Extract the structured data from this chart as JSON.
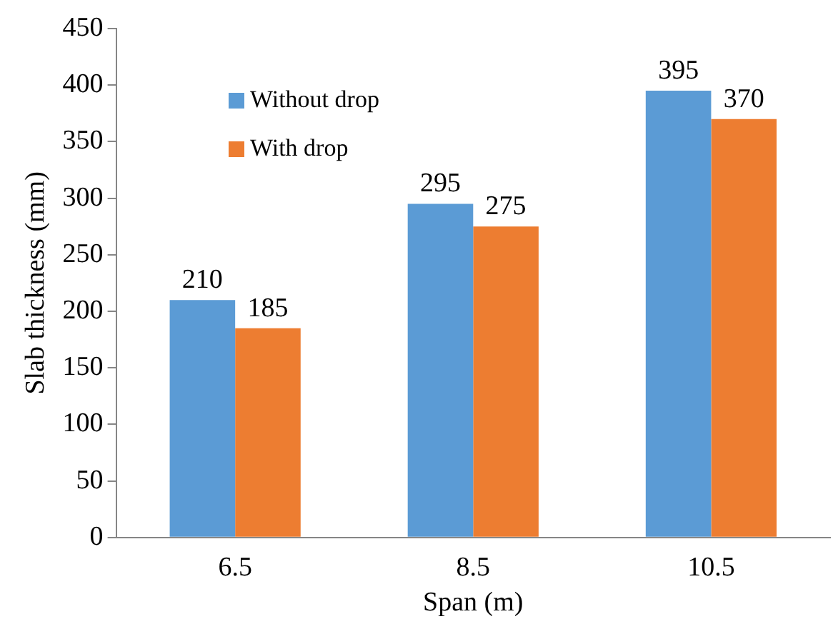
{
  "chart_data": {
    "type": "bar",
    "xlabel": "Span (m)",
    "ylabel": "Slab thickness (mm)",
    "categories": [
      "6.5",
      "8.5",
      "10.5"
    ],
    "series": [
      {
        "name": "Without drop",
        "color": "#5b9bd5",
        "values": [
          210,
          295,
          395
        ]
      },
      {
        "name": "With drop",
        "color": "#ed7d31",
        "values": [
          185,
          275,
          370
        ]
      }
    ],
    "ylim": [
      0,
      450
    ],
    "yticks": [
      0,
      50,
      100,
      150,
      200,
      250,
      300,
      350,
      400,
      450
    ],
    "grid": false,
    "legend": "top left",
    "data_labels": true
  }
}
